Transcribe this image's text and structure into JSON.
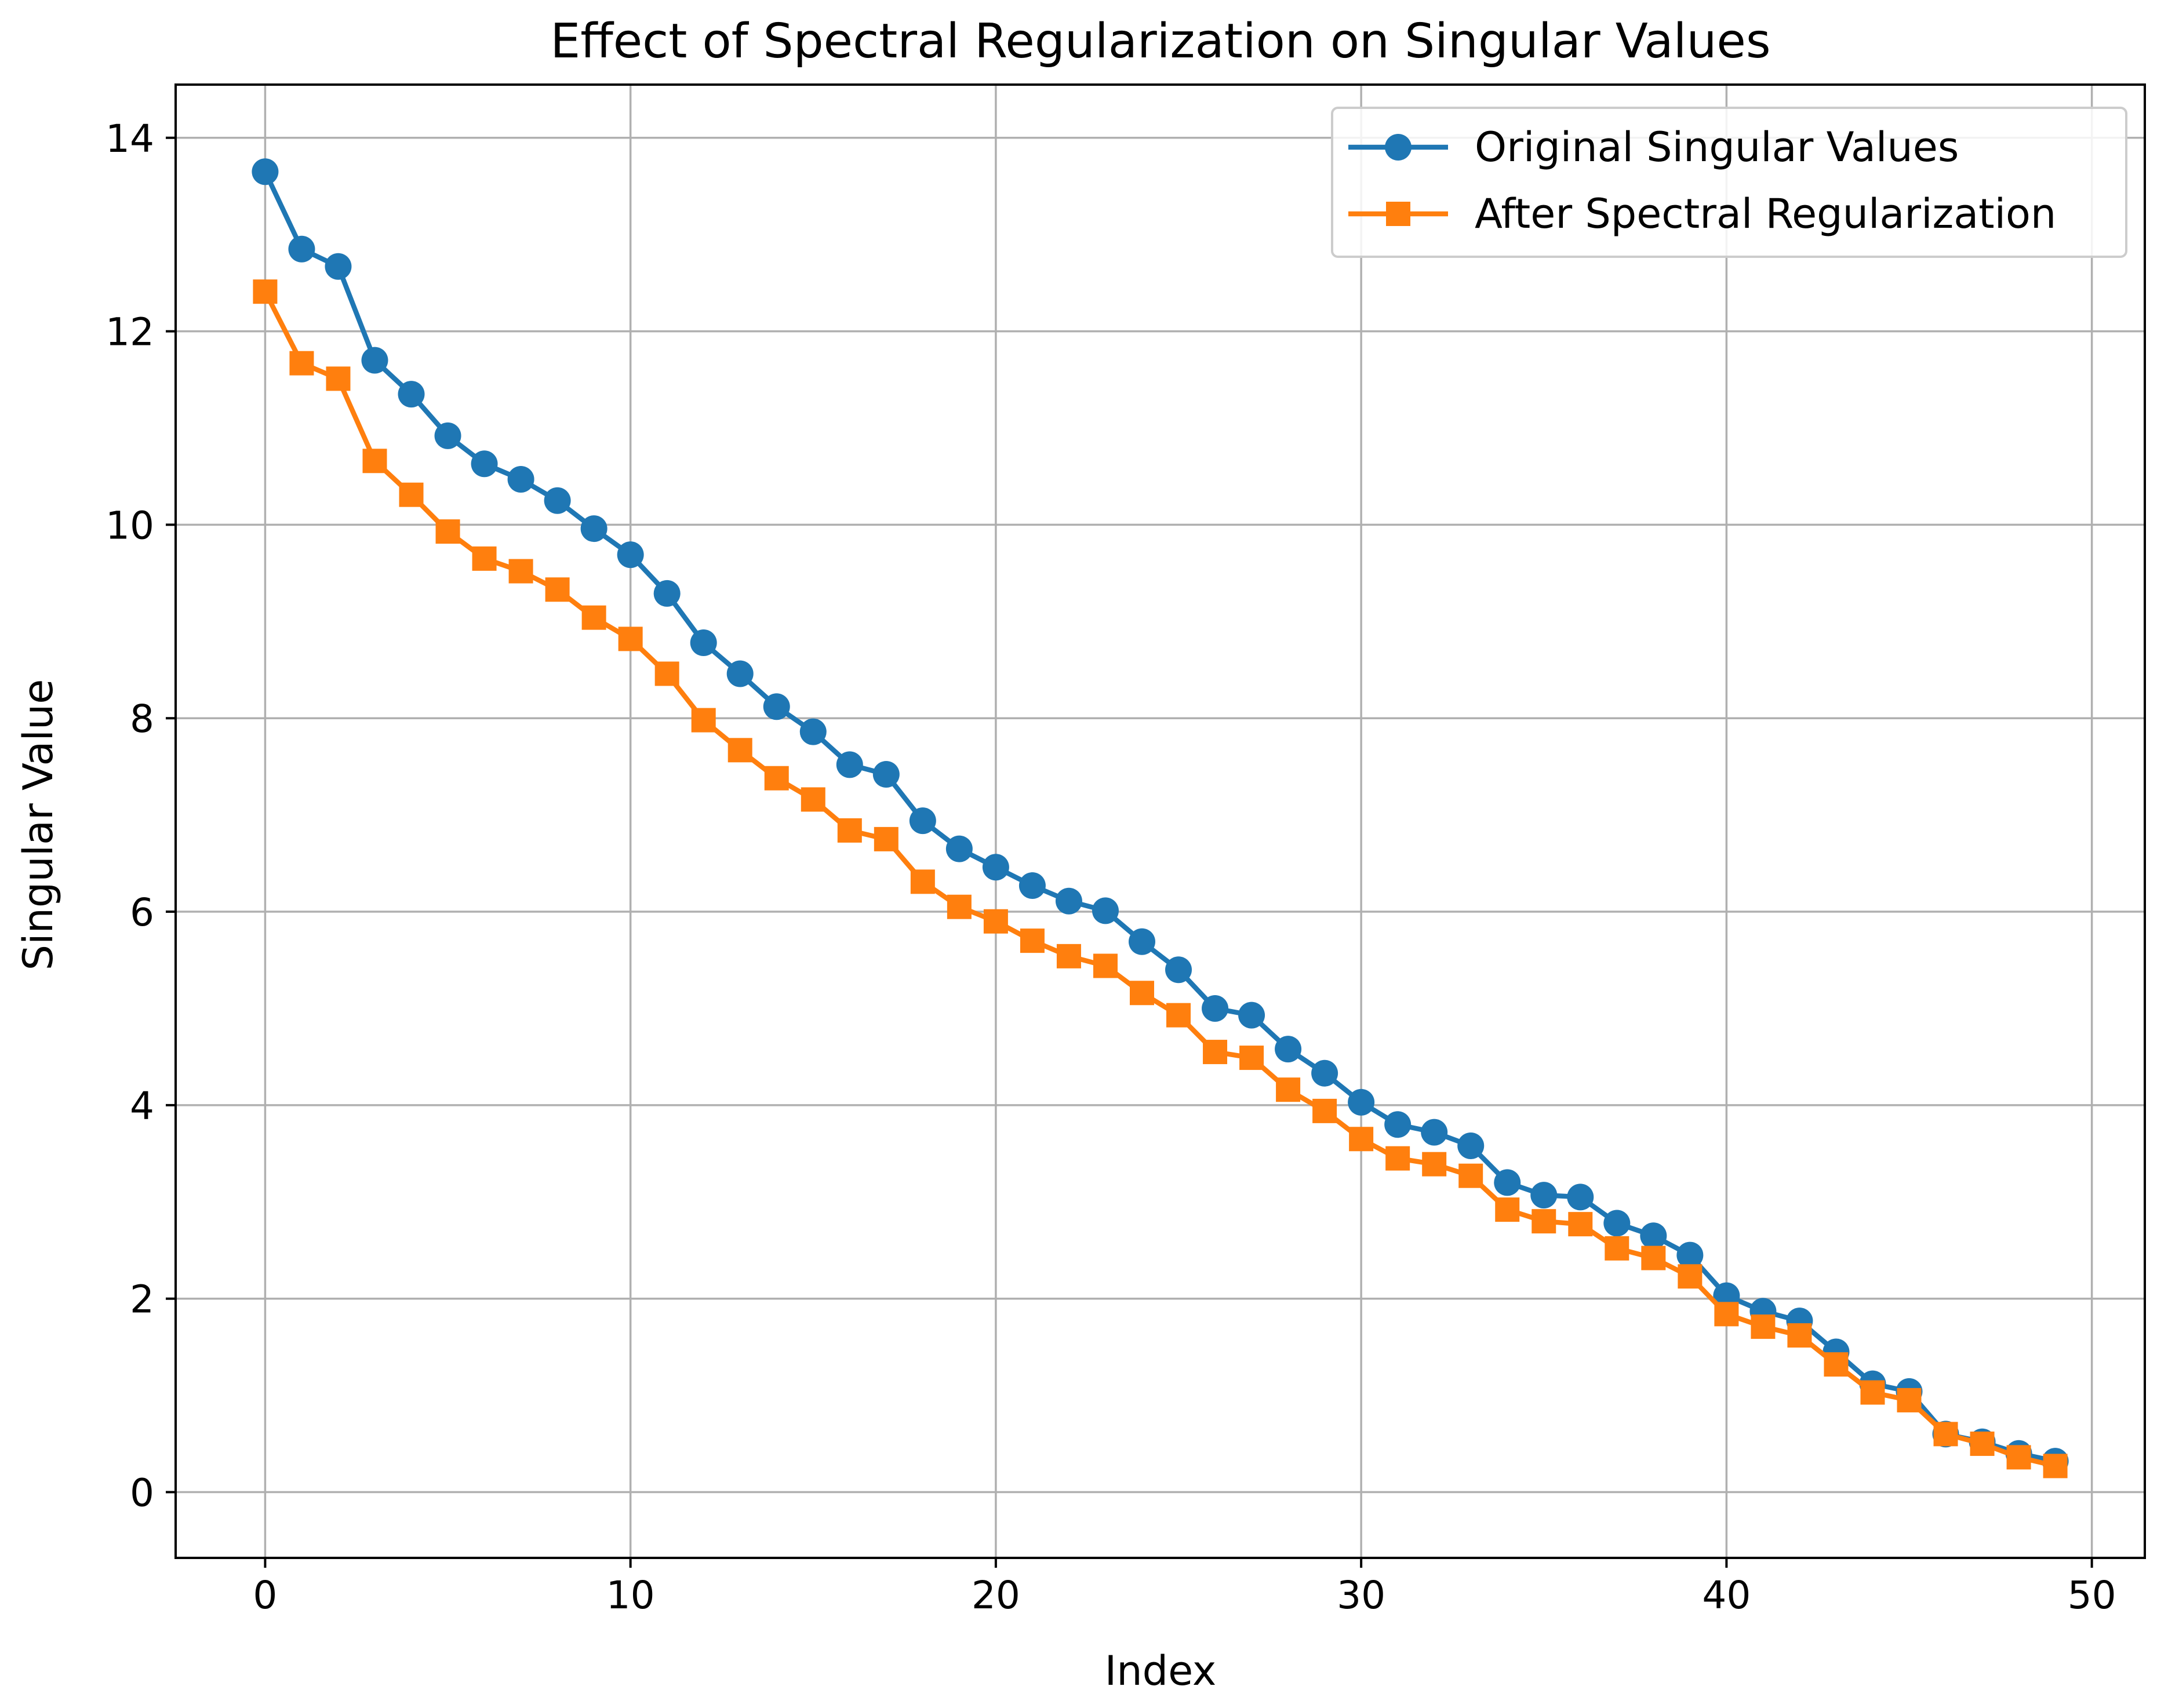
{
  "chart_data": {
    "type": "line",
    "title": "Effect of Spectral Regularization on Singular Values",
    "xlabel": "Index",
    "ylabel": "Singular Value",
    "xlim": [
      -2.45,
      51.45
    ],
    "ylim": [
      -0.68,
      14.55
    ],
    "x_ticks": [
      0,
      10,
      20,
      30,
      40,
      50
    ],
    "y_ticks": [
      0,
      2,
      4,
      6,
      8,
      10,
      12,
      14
    ],
    "grid": true,
    "legend_position": "top-right",
    "x": [
      0,
      1,
      2,
      3,
      4,
      5,
      6,
      7,
      8,
      9,
      10,
      11,
      12,
      13,
      14,
      15,
      16,
      17,
      18,
      19,
      20,
      21,
      22,
      23,
      24,
      25,
      26,
      27,
      28,
      29,
      30,
      31,
      32,
      33,
      34,
      35,
      36,
      37,
      38,
      39,
      40,
      41,
      42,
      43,
      44,
      45,
      46,
      47,
      48,
      49
    ],
    "series": [
      {
        "name": "Original Singular Values",
        "color": "#1f77b4",
        "marker": "circle",
        "values": [
          13.65,
          12.85,
          12.67,
          11.7,
          11.35,
          10.92,
          10.63,
          10.47,
          10.25,
          9.96,
          9.69,
          9.29,
          8.78,
          8.46,
          8.12,
          7.86,
          7.52,
          7.42,
          6.94,
          6.65,
          6.46,
          6.27,
          6.11,
          6.01,
          5.69,
          5.4,
          5.0,
          4.93,
          4.58,
          4.33,
          4.03,
          3.8,
          3.72,
          3.58,
          3.2,
          3.07,
          3.05,
          2.78,
          2.65,
          2.45,
          2.03,
          1.87,
          1.77,
          1.45,
          1.12,
          1.04,
          0.6,
          0.52,
          0.4,
          0.32
        ]
      },
      {
        "name": "After Spectral Regularization",
        "color": "#ff7f0e",
        "marker": "square",
        "values": [
          12.41,
          11.67,
          11.51,
          10.66,
          10.31,
          9.93,
          9.65,
          9.52,
          9.33,
          9.04,
          8.82,
          8.46,
          7.98,
          7.67,
          7.38,
          7.16,
          6.84,
          6.75,
          6.31,
          6.05,
          5.9,
          5.7,
          5.54,
          5.44,
          5.16,
          4.93,
          4.55,
          4.49,
          4.16,
          3.94,
          3.65,
          3.45,
          3.39,
          3.27,
          2.92,
          2.8,
          2.77,
          2.52,
          2.42,
          2.23,
          1.84,
          1.71,
          1.62,
          1.32,
          1.03,
          0.95,
          0.6,
          0.5,
          0.36,
          0.27
        ]
      }
    ]
  }
}
